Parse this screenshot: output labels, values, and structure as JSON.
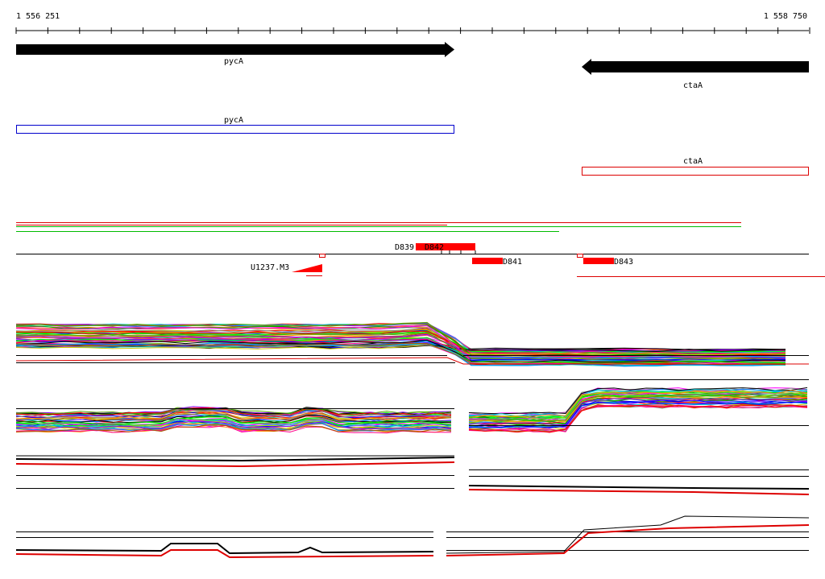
{
  "ruler": {
    "start": "1 556 251",
    "end": "1 558 750"
  },
  "genes": [
    {
      "label": "pycA"
    },
    {
      "label": "ctaA"
    }
  ],
  "annotations": [
    {
      "label": "pycA"
    },
    {
      "label": "ctaA"
    }
  ],
  "features": [
    {
      "label": "D839"
    },
    {
      "label": "D842"
    },
    {
      "label": "D841"
    },
    {
      "label": "D843"
    },
    {
      "label": "U1237.M3"
    }
  ]
}
